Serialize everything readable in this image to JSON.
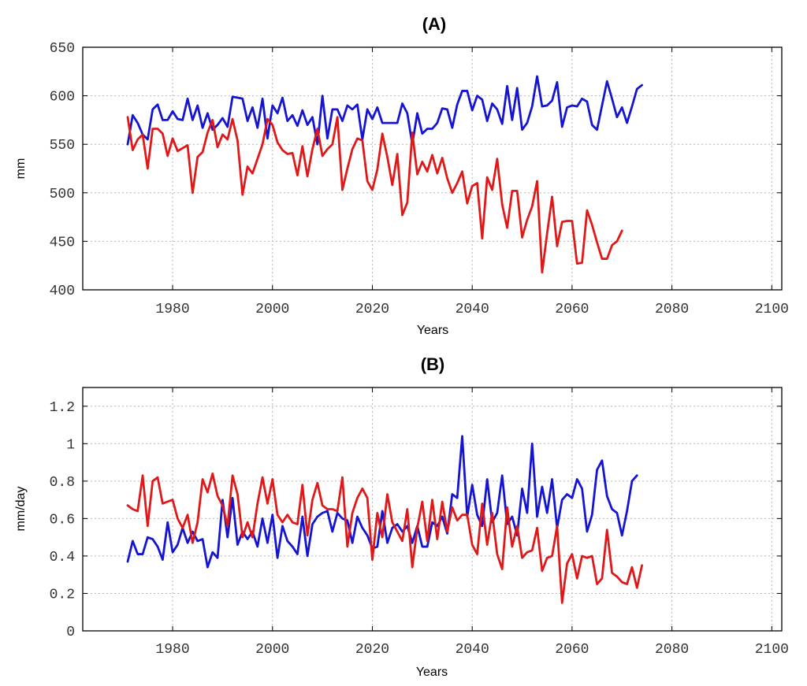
{
  "chart_data": [
    {
      "type": "line",
      "title": "(A)",
      "xlabel": "Years",
      "ylabel": "mm",
      "xlim": [
        1962,
        2102
      ],
      "ylim": [
        400,
        650
      ],
      "xticks": [
        1980,
        2000,
        2020,
        2040,
        2060,
        2080,
        2100
      ],
      "yticks": [
        400,
        450,
        500,
        550,
        600,
        650
      ],
      "x_start": 1971,
      "series": [
        {
          "name": "blue series",
          "color": "#1414d2",
          "values": [
            550,
            580,
            572,
            560,
            555,
            586,
            591,
            575,
            575,
            584,
            576,
            575,
            597,
            575,
            590,
            567,
            582,
            565,
            570,
            577,
            568,
            599,
            598,
            597,
            574,
            588,
            567,
            597,
            556,
            590,
            582,
            598,
            574,
            580,
            569,
            585,
            570,
            578,
            550,
            600,
            556,
            586,
            586,
            574,
            590,
            586,
            591,
            555,
            586,
            576,
            588,
            572,
            572,
            572,
            572,
            592,
            582,
            550,
            582,
            561,
            566,
            566,
            572,
            587,
            586,
            567,
            591,
            605,
            605,
            585,
            600,
            596,
            574,
            592,
            586,
            571,
            610,
            575,
            608,
            565,
            572,
            589,
            620,
            589,
            590,
            595,
            614,
            568,
            588,
            590,
            589,
            597,
            594,
            570,
            565,
            590,
            615,
            597,
            578,
            588,
            572,
            589,
            607,
            611
          ]
        },
        {
          "name": "red series",
          "color": "#e01818",
          "values": [
            578,
            544,
            555,
            560,
            525,
            566,
            566,
            561,
            538,
            556,
            543,
            546,
            549,
            500,
            537,
            542,
            562,
            575,
            547,
            560,
            555,
            576,
            554,
            498,
            527,
            520,
            535,
            550,
            576,
            570,
            552,
            544,
            540,
            541,
            518,
            548,
            517,
            545,
            566,
            538,
            545,
            550,
            578,
            503,
            525,
            545,
            556,
            554,
            512,
            503,
            524,
            561,
            537,
            508,
            540,
            477,
            490,
            562,
            519,
            532,
            522,
            539,
            520,
            536,
            515,
            500,
            510,
            522,
            489,
            507,
            510,
            453,
            516,
            503,
            535,
            488,
            464,
            502,
            502,
            454,
            472,
            486,
            512,
            418,
            458,
            496,
            445,
            470,
            471,
            471,
            427,
            428,
            482,
            467,
            449,
            432,
            432,
            446,
            450,
            461
          ]
        }
      ]
    },
    {
      "type": "line",
      "title": "(B)",
      "xlabel": "Years",
      "ylabel": "mm/day",
      "xlim": [
        1962,
        2102
      ],
      "ylim": [
        0,
        1.3
      ],
      "xticks": [
        1980,
        2000,
        2020,
        2040,
        2060,
        2080,
        2100
      ],
      "yticks": [
        0,
        0.2,
        0.4,
        0.6,
        0.8,
        1,
        1.2
      ],
      "ytick_labels": [
        "0",
        "0.2",
        "0.4",
        "0.6",
        "0.8",
        "1",
        "1.2"
      ],
      "x_start": 1971,
      "series": [
        {
          "name": "blue series",
          "color": "#1414d2",
          "values": [
            0.37,
            0.48,
            0.41,
            0.41,
            0.5,
            0.49,
            0.45,
            0.38,
            0.58,
            0.42,
            0.46,
            0.55,
            0.47,
            0.53,
            0.48,
            0.49,
            0.34,
            0.42,
            0.39,
            0.7,
            0.5,
            0.71,
            0.46,
            0.53,
            0.49,
            0.53,
            0.45,
            0.6,
            0.47,
            0.62,
            0.39,
            0.56,
            0.48,
            0.45,
            0.41,
            0.61,
            0.4,
            0.57,
            0.61,
            0.63,
            0.64,
            0.53,
            0.63,
            0.6,
            0.59,
            0.47,
            0.61,
            0.55,
            0.51,
            0.44,
            0.45,
            0.64,
            0.47,
            0.55,
            0.57,
            0.53,
            0.56,
            0.47,
            0.56,
            0.45,
            0.45,
            0.58,
            0.56,
            0.61,
            0.52,
            0.73,
            0.71,
            1.04,
            0.61,
            0.78,
            0.62,
            0.56,
            0.81,
            0.58,
            0.63,
            0.83,
            0.57,
            0.61,
            0.51,
            0.76,
            0.63,
            1.0,
            0.61,
            0.77,
            0.63,
            0.81,
            0.55,
            0.7,
            0.73,
            0.71,
            0.81,
            0.76,
            0.53,
            0.62,
            0.86,
            0.91,
            0.72,
            0.65,
            0.63,
            0.51,
            0.64,
            0.8,
            0.83
          ]
        },
        {
          "name": "red series",
          "color": "#e01818",
          "values": [
            0.67,
            0.65,
            0.64,
            0.83,
            0.56,
            0.8,
            0.82,
            0.68,
            0.69,
            0.7,
            0.6,
            0.55,
            0.62,
            0.47,
            0.58,
            0.81,
            0.74,
            0.84,
            0.72,
            0.67,
            0.56,
            0.83,
            0.73,
            0.5,
            0.58,
            0.5,
            0.68,
            0.82,
            0.68,
            0.81,
            0.62,
            0.58,
            0.62,
            0.58,
            0.57,
            0.78,
            0.51,
            0.7,
            0.79,
            0.67,
            0.65,
            0.65,
            0.64,
            0.82,
            0.45,
            0.63,
            0.71,
            0.76,
            0.71,
            0.38,
            0.63,
            0.5,
            0.73,
            0.58,
            0.53,
            0.48,
            0.65,
            0.34,
            0.55,
            0.69,
            0.48,
            0.7,
            0.49,
            0.69,
            0.53,
            0.66,
            0.59,
            0.62,
            0.62,
            0.46,
            0.41,
            0.68,
            0.46,
            0.63,
            0.41,
            0.33,
            0.66,
            0.45,
            0.56,
            0.39,
            0.42,
            0.43,
            0.55,
            0.32,
            0.39,
            0.4,
            0.56,
            0.15,
            0.36,
            0.41,
            0.28,
            0.4,
            0.39,
            0.4,
            0.25,
            0.28,
            0.54,
            0.31,
            0.29,
            0.26,
            0.25,
            0.34,
            0.23,
            0.35
          ]
        }
      ]
    }
  ]
}
